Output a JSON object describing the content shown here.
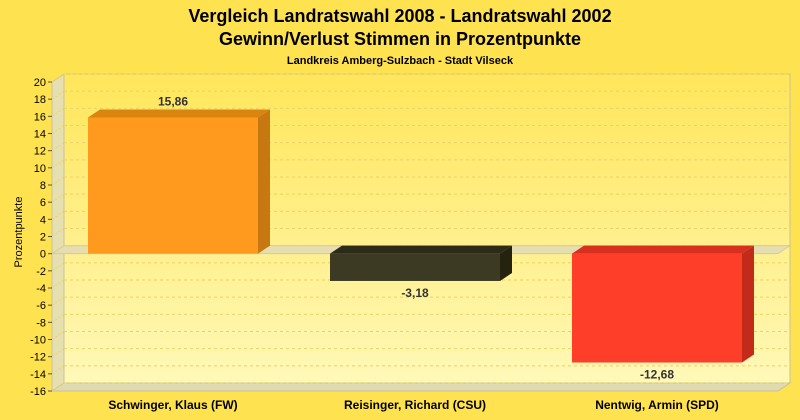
{
  "chart_data": {
    "type": "bar",
    "title": "Vergleich Landratswahl 2008 - Landratswahl 2002",
    "subtitle_main": "Gewinn/Verlust Stimmen in Prozentpunkte",
    "subtitle": "Landkreis Amberg-Sulzbach - Stadt Vilseck",
    "ylabel": "Prozentpunkte",
    "ylim": [
      -16,
      20
    ],
    "ytick_step": 2,
    "grid": true,
    "categories": [
      "Schwinger, Klaus (FW)",
      "Reisinger, Richard (CSU)",
      "Nentwig, Armin (SPD)"
    ],
    "values": [
      15.86,
      -3.18,
      -12.68
    ],
    "value_labels": [
      "15,86",
      "-3,18",
      "-12,68"
    ],
    "colors": [
      "#ff9a1f",
      "#3c3a22",
      "#ff3e2a"
    ],
    "side_colors": [
      "#c77810",
      "#24230f",
      "#c22a1a"
    ],
    "top_colors": [
      "#d9850f",
      "#2c2b18",
      "#d8301f"
    ]
  }
}
